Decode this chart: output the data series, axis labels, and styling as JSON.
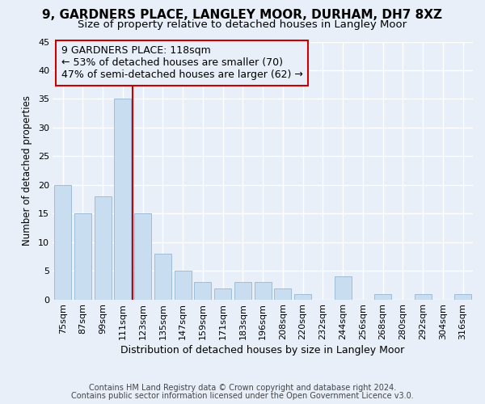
{
  "title1": "9, GARDNERS PLACE, LANGLEY MOOR, DURHAM, DH7 8XZ",
  "title2": "Size of property relative to detached houses in Langley Moor",
  "xlabel": "Distribution of detached houses by size in Langley Moor",
  "ylabel": "Number of detached properties",
  "categories": [
    "75sqm",
    "87sqm",
    "99sqm",
    "111sqm",
    "123sqm",
    "135sqm",
    "147sqm",
    "159sqm",
    "171sqm",
    "183sqm",
    "196sqm",
    "208sqm",
    "220sqm",
    "232sqm",
    "244sqm",
    "256sqm",
    "268sqm",
    "280sqm",
    "292sqm",
    "304sqm",
    "316sqm"
  ],
  "values": [
    20,
    15,
    18,
    35,
    15,
    8,
    5,
    3,
    2,
    3,
    3,
    2,
    1,
    0,
    4,
    0,
    1,
    0,
    1,
    0,
    1
  ],
  "bar_color": "#c9ddf0",
  "bar_edge_color": "#a0bcd8",
  "vline_x_index": 4,
  "annotation_line1": "9 GARDNERS PLACE: 118sqm",
  "annotation_line2": "← 53% of detached houses are smaller (70)",
  "annotation_line3": "47% of semi-detached houses are larger (62) →",
  "vline_color": "#cc0000",
  "box_edge_color": "#cc0000",
  "ylim": [
    0,
    45
  ],
  "yticks": [
    0,
    5,
    10,
    15,
    20,
    25,
    30,
    35,
    40,
    45
  ],
  "footnote_line1": "Contains HM Land Registry data © Crown copyright and database right 2024.",
  "footnote_line2": "Contains public sector information licensed under the Open Government Licence v3.0.",
  "background_color": "#e8eff8",
  "grid_color": "#ffffff",
  "title1_fontsize": 11,
  "title2_fontsize": 9.5,
  "xlabel_fontsize": 9,
  "ylabel_fontsize": 8.5,
  "annotation_fontsize": 9,
  "tick_fontsize": 8,
  "footnote_fontsize": 7
}
